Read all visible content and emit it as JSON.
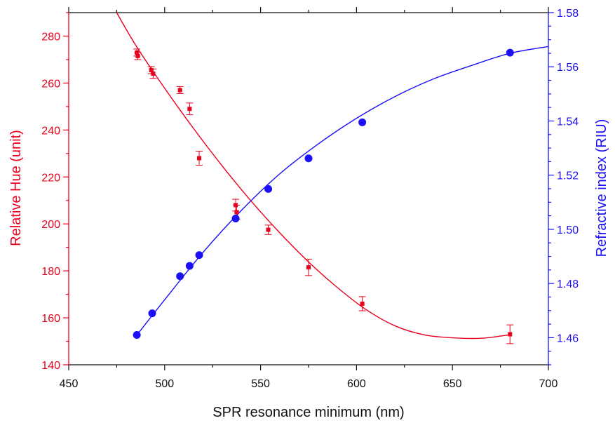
{
  "chart_data": {
    "type": "scatter",
    "xlabel": "SPR resonance minimum (nm)",
    "ylabel_left": "Relative Hue (unit)",
    "ylabel_right": "Refractive index (RIU)",
    "xlim": [
      450,
      700
    ],
    "ylim_left": [
      140,
      290
    ],
    "ylim_right": [
      1.45,
      1.58
    ],
    "xticks": [
      "450",
      "500",
      "550",
      "600",
      "650",
      "700"
    ],
    "yticks_left": [
      "140",
      "160",
      "180",
      "200",
      "220",
      "240",
      "260",
      "280"
    ],
    "yticks_right": [
      "1.46",
      "1.48",
      "1.50",
      "1.52",
      "1.54",
      "1.56",
      "1.58"
    ],
    "colors": {
      "left_axis": "#e8001c",
      "right_axis": "#1a0ff5",
      "x_axis": "#111111"
    },
    "series": [
      {
        "axis": "left",
        "style": "square markers with error bars",
        "x": [
          485.5,
          486,
          493,
          494,
          508,
          513,
          518,
          537,
          537.5,
          554,
          575,
          603,
          680
        ],
        "y": [
          273,
          271.5,
          265.5,
          264,
          257,
          249,
          228,
          208,
          205,
          197.5,
          181.5,
          166,
          153
        ],
        "err": [
          1.5,
          1.5,
          1.5,
          2,
          1.5,
          2.5,
          3,
          2.5,
          3,
          2,
          3.5,
          3,
          4
        ]
      },
      {
        "axis": "left",
        "style": "fit line",
        "x": [
          475,
          485,
          500,
          515,
          530,
          545,
          560,
          575,
          590,
          605,
          620,
          635,
          650,
          665,
          680
        ],
        "y": [
          290,
          276,
          257.8,
          240.7,
          224.7,
          209.8,
          196.2,
          183.8,
          172.9,
          163.5,
          156.6,
          152.8,
          151.5,
          151.3,
          152.8
        ]
      },
      {
        "axis": "right",
        "style": "circle markers",
        "x": [
          485.5,
          493.5,
          508,
          513,
          518,
          537,
          554,
          575,
          603,
          680
        ],
        "y": [
          1.461,
          1.469,
          1.4827,
          1.4865,
          1.4905,
          1.504,
          1.5149,
          1.5262,
          1.5395,
          1.5652
        ]
      },
      {
        "axis": "right",
        "style": "fit line",
        "x": [
          485,
          500,
          520,
          540,
          560,
          580,
          600,
          620,
          640,
          660,
          680,
          700
        ],
        "y": [
          1.4605,
          1.474,
          1.4915,
          1.507,
          1.5205,
          1.5315,
          1.541,
          1.549,
          1.5555,
          1.5605,
          1.565,
          1.5675
        ]
      }
    ]
  }
}
